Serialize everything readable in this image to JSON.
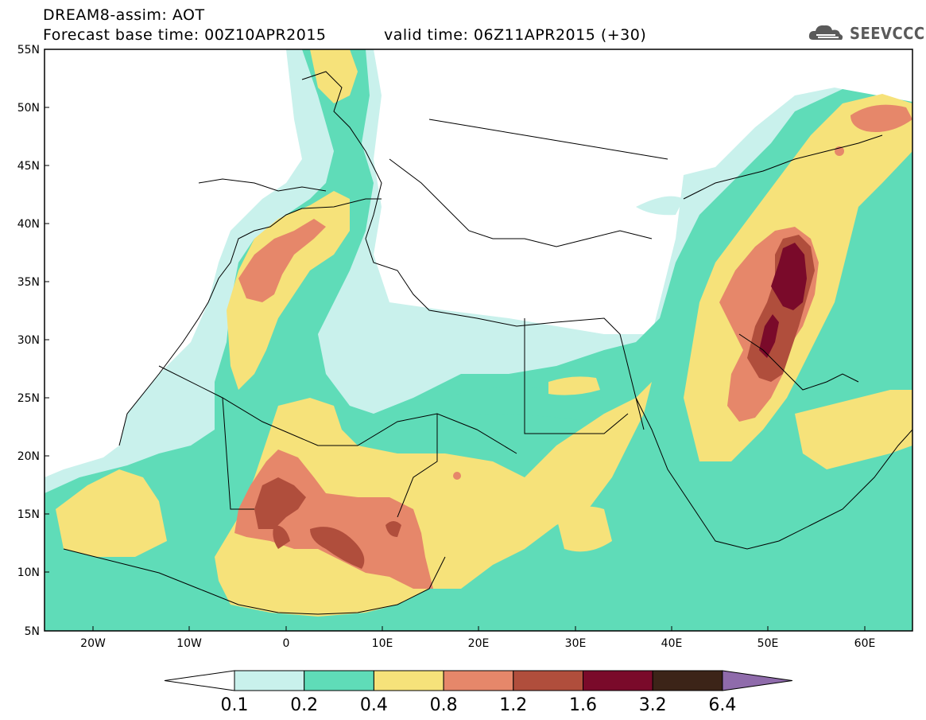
{
  "header": {
    "line1": "DREAM8-assim: AOT",
    "line2": "Forecast base time: 00Z10APR2015",
    "line3": "valid time: 06Z11APR2015 (+30)"
  },
  "logo": {
    "text": "SEEVCCC",
    "icon": "cloud-icon"
  },
  "map": {
    "lat_labels": [
      "55N",
      "50N",
      "45N",
      "40N",
      "35N",
      "30N",
      "25N",
      "20N",
      "15N",
      "10N",
      "5N"
    ],
    "lon_labels": [
      "20W",
      "10W",
      "0",
      "10E",
      "20E",
      "30E",
      "40E",
      "50E",
      "60E"
    ]
  },
  "colorbar": {
    "levels": [
      "0.1",
      "0.2",
      "0.4",
      "0.8",
      "1.2",
      "1.6",
      "3.2",
      "6.4"
    ],
    "colors": [
      "#c9f1ec",
      "#5fdcb8",
      "#f6e27a",
      "#e6876a",
      "#b04e3c",
      "#7a0a2a",
      "#3c2418",
      "#8f6bab"
    ]
  }
}
